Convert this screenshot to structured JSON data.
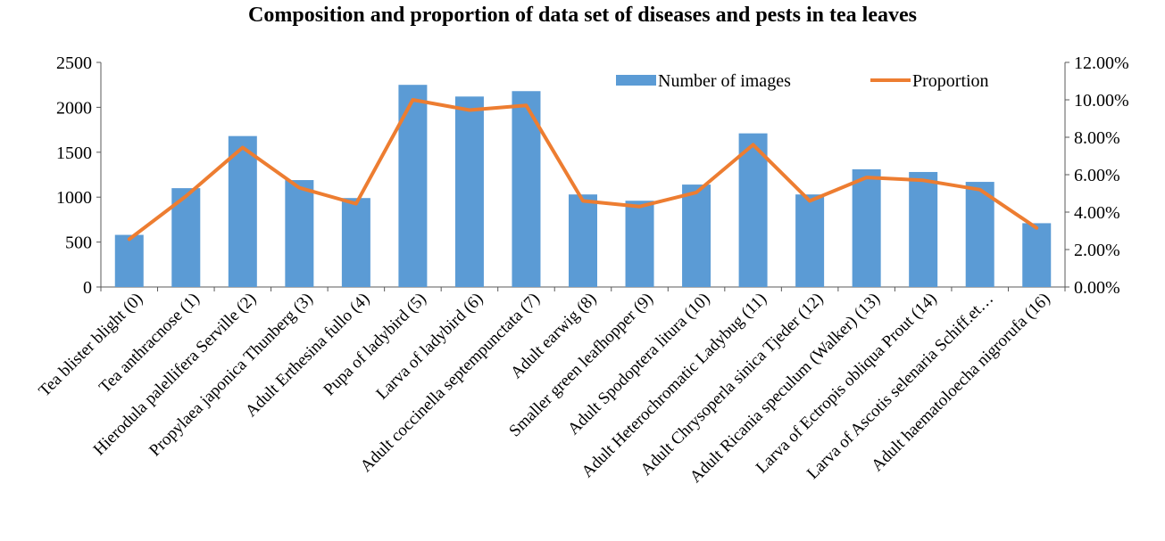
{
  "chart_data": {
    "type": "bar",
    "title": "Composition and proportion of data set of diseases and pests in tea leaves",
    "xlabel": "",
    "ylabel": "",
    "categories": [
      "Tea blister blight (0)",
      "Tea anthracnose (1)",
      "Hierodula palellifera Serville (2)",
      "Propylaea japonica Thunberg (3)",
      "Adult Erthesina fullo (4)",
      "Pupa of ladybird (5)",
      "Larva of ladybird (6)",
      "Adult coccinella septempunctata (7)",
      "Adult earwig (8)",
      "Smaller green leafhopper (9)",
      "Adult Spodoptera litura (10)",
      "Adult Heterochromatic Ladybug (11)",
      "Adult Chrysoperla sinica Tjeder (12)",
      "Adult Ricania speculum (Walker) (13)",
      "Larva of Ectropis obliqua Prout (14)",
      "Larva of Ascotis selenaria Schiff.et…",
      "Adult haematoloecha nigrorufa (16)"
    ],
    "series": [
      {
        "name": "Number of images",
        "type": "bar",
        "axis": "left",
        "color": "#5B9BD5",
        "values": [
          580,
          1100,
          1680,
          1190,
          990,
          2250,
          2120,
          2180,
          1030,
          960,
          1140,
          1710,
          1030,
          1310,
          1280,
          1170,
          710
        ]
      },
      {
        "name": "Proportion",
        "type": "line",
        "axis": "right",
        "color": "#ED7D31",
        "values": [
          0.0255,
          0.0485,
          0.0745,
          0.053,
          0.0445,
          0.1,
          0.0945,
          0.097,
          0.046,
          0.043,
          0.0505,
          0.076,
          0.046,
          0.0585,
          0.057,
          0.052,
          0.0315
        ]
      }
    ],
    "ylim": [
      0,
      2500
    ],
    "y_ticks": [
      "0",
      "500",
      "1000",
      "1500",
      "2000",
      "2500"
    ],
    "y2lim": [
      0,
      0.12
    ],
    "y2_ticks": [
      "0.00%",
      "2.00%",
      "4.00%",
      "6.00%",
      "8.00%",
      "10.00%",
      "12.00%"
    ],
    "legend": "top-right",
    "grid": false
  }
}
